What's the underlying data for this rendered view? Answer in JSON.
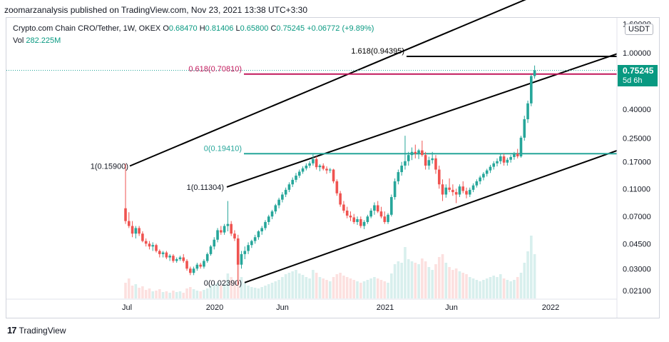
{
  "header": {
    "published": "zoomarzanalysis published on TradingView.com, Nov 23, 2021 13:38 UTC+3:30"
  },
  "legend": {
    "symbol": "Crypto.com Chain CRO/Tether, 1W, OKEX",
    "open_label": "O",
    "open": "0.68470",
    "high_label": "H",
    "high": "0.81406",
    "low_label": "L",
    "low": "0.65800",
    "close_label": "C",
    "close": "0.75245",
    "change": "+0.06772 (+9.89%)",
    "vol_label": "Vol",
    "vol": "282.225M"
  },
  "currency_badge": "USDT",
  "price_tag": {
    "price": "0.75245",
    "countdown": "5d 6h"
  },
  "footer": {
    "brand": "TradingView"
  },
  "chart_data": {
    "type": "candlestick",
    "y_scale": "log",
    "y_ticks": [
      "1.60000",
      "1.00000",
      "0.40000",
      "0.25000",
      "0.17000",
      "0.11000",
      "0.07000",
      "0.04500",
      "0.03000",
      "0.02100"
    ],
    "x_ticks": [
      "Jul",
      "2020",
      "Jun",
      "2021",
      "Jun",
      "2022"
    ],
    "fib_levels": [
      {
        "label": "1.618(0.94395)",
        "value": 0.94395,
        "color": "#000000"
      },
      {
        "label": "0.618(0.70810)",
        "value": 0.7081,
        "color": "#c2185b"
      },
      {
        "label": "0(0.19410)",
        "value": 0.1941,
        "color": "#26a69a"
      }
    ],
    "annotations": [
      {
        "label": "1(0.15900)",
        "value": 0.159
      },
      {
        "label": "1(0.11304)",
        "value": 0.11304
      },
      {
        "label": "0(0.02390)",
        "value": 0.0239
      }
    ],
    "colors": {
      "up": "#26a69a",
      "down": "#ef5350",
      "channel": "#000000"
    },
    "candles": [
      [
        0.08,
        0.165,
        0.062,
        0.065
      ],
      [
        0.065,
        0.075,
        0.058,
        0.06
      ],
      [
        0.06,
        0.065,
        0.05,
        0.053
      ],
      [
        0.053,
        0.06,
        0.049,
        0.058
      ],
      [
        0.058,
        0.06,
        0.051,
        0.053
      ],
      [
        0.053,
        0.055,
        0.046,
        0.047
      ],
      [
        0.047,
        0.049,
        0.043,
        0.045
      ],
      [
        0.045,
        0.047,
        0.041,
        0.043
      ],
      [
        0.043,
        0.046,
        0.04,
        0.044
      ],
      [
        0.044,
        0.045,
        0.039,
        0.04
      ],
      [
        0.04,
        0.041,
        0.036,
        0.038
      ],
      [
        0.038,
        0.04,
        0.036,
        0.039
      ],
      [
        0.039,
        0.04,
        0.035,
        0.036
      ],
      [
        0.036,
        0.038,
        0.034,
        0.037
      ],
      [
        0.037,
        0.038,
        0.033,
        0.034
      ],
      [
        0.034,
        0.036,
        0.033,
        0.035
      ],
      [
        0.035,
        0.037,
        0.034,
        0.036
      ],
      [
        0.036,
        0.038,
        0.033,
        0.034
      ],
      [
        0.034,
        0.035,
        0.029,
        0.03
      ],
      [
        0.03,
        0.031,
        0.027,
        0.028
      ],
      [
        0.028,
        0.031,
        0.027,
        0.03
      ],
      [
        0.03,
        0.033,
        0.029,
        0.032
      ],
      [
        0.032,
        0.033,
        0.03,
        0.031
      ],
      [
        0.031,
        0.035,
        0.03,
        0.034
      ],
      [
        0.034,
        0.039,
        0.033,
        0.038
      ],
      [
        0.038,
        0.044,
        0.037,
        0.043
      ],
      [
        0.043,
        0.05,
        0.041,
        0.048
      ],
      [
        0.048,
        0.058,
        0.046,
        0.056
      ],
      [
        0.056,
        0.06,
        0.052,
        0.054
      ],
      [
        0.054,
        0.062,
        0.052,
        0.06
      ],
      [
        0.06,
        0.09,
        0.055,
        0.062
      ],
      [
        0.062,
        0.065,
        0.051,
        0.053
      ],
      [
        0.053,
        0.056,
        0.047,
        0.049
      ],
      [
        0.049,
        0.052,
        0.023,
        0.032
      ],
      [
        0.032,
        0.04,
        0.03,
        0.038
      ],
      [
        0.038,
        0.043,
        0.035,
        0.04
      ],
      [
        0.04,
        0.046,
        0.038,
        0.044
      ],
      [
        0.044,
        0.048,
        0.042,
        0.047
      ],
      [
        0.047,
        0.052,
        0.045,
        0.05
      ],
      [
        0.05,
        0.056,
        0.048,
        0.055
      ],
      [
        0.055,
        0.06,
        0.052,
        0.058
      ],
      [
        0.058,
        0.066,
        0.056,
        0.064
      ],
      [
        0.064,
        0.072,
        0.061,
        0.07
      ],
      [
        0.07,
        0.078,
        0.067,
        0.076
      ],
      [
        0.076,
        0.086,
        0.073,
        0.084
      ],
      [
        0.084,
        0.095,
        0.08,
        0.092
      ],
      [
        0.092,
        0.104,
        0.088,
        0.1
      ],
      [
        0.1,
        0.112,
        0.096,
        0.108
      ],
      [
        0.108,
        0.122,
        0.104,
        0.118
      ],
      [
        0.118,
        0.132,
        0.113,
        0.127
      ],
      [
        0.127,
        0.142,
        0.122,
        0.136
      ],
      [
        0.136,
        0.15,
        0.131,
        0.145
      ],
      [
        0.145,
        0.158,
        0.14,
        0.153
      ],
      [
        0.153,
        0.166,
        0.148,
        0.16
      ],
      [
        0.16,
        0.172,
        0.154,
        0.166
      ],
      [
        0.166,
        0.192,
        0.16,
        0.178
      ],
      [
        0.178,
        0.186,
        0.15,
        0.156
      ],
      [
        0.156,
        0.164,
        0.146,
        0.16
      ],
      [
        0.16,
        0.166,
        0.148,
        0.152
      ],
      [
        0.152,
        0.158,
        0.14,
        0.148
      ],
      [
        0.148,
        0.154,
        0.142,
        0.15
      ],
      [
        0.15,
        0.152,
        0.12,
        0.124
      ],
      [
        0.124,
        0.128,
        0.098,
        0.102
      ],
      [
        0.102,
        0.106,
        0.082,
        0.085
      ],
      [
        0.085,
        0.09,
        0.074,
        0.077
      ],
      [
        0.077,
        0.082,
        0.068,
        0.071
      ],
      [
        0.071,
        0.076,
        0.065,
        0.069
      ],
      [
        0.069,
        0.073,
        0.062,
        0.064
      ],
      [
        0.064,
        0.07,
        0.061,
        0.067
      ],
      [
        0.067,
        0.07,
        0.058,
        0.06
      ],
      [
        0.06,
        0.066,
        0.057,
        0.064
      ],
      [
        0.064,
        0.072,
        0.062,
        0.07
      ],
      [
        0.07,
        0.08,
        0.068,
        0.077
      ],
      [
        0.077,
        0.088,
        0.072,
        0.084
      ],
      [
        0.084,
        0.09,
        0.074,
        0.076
      ],
      [
        0.076,
        0.082,
        0.068,
        0.07
      ],
      [
        0.07,
        0.076,
        0.062,
        0.064
      ],
      [
        0.064,
        0.074,
        0.062,
        0.072
      ],
      [
        0.072,
        0.1,
        0.07,
        0.096
      ],
      [
        0.096,
        0.13,
        0.092,
        0.124
      ],
      [
        0.124,
        0.15,
        0.118,
        0.144
      ],
      [
        0.144,
        0.17,
        0.136,
        0.16
      ],
      [
        0.16,
        0.26,
        0.15,
        0.172
      ],
      [
        0.172,
        0.2,
        0.16,
        0.19
      ],
      [
        0.19,
        0.215,
        0.175,
        0.2
      ],
      [
        0.2,
        0.225,
        0.18,
        0.195
      ],
      [
        0.195,
        0.21,
        0.178,
        0.205
      ],
      [
        0.205,
        0.24,
        0.185,
        0.19
      ],
      [
        0.19,
        0.2,
        0.15,
        0.16
      ],
      [
        0.16,
        0.185,
        0.15,
        0.175
      ],
      [
        0.175,
        0.2,
        0.165,
        0.18
      ],
      [
        0.18,
        0.19,
        0.14,
        0.15
      ],
      [
        0.15,
        0.16,
        0.11,
        0.118
      ],
      [
        0.118,
        0.128,
        0.09,
        0.1
      ],
      [
        0.1,
        0.118,
        0.095,
        0.112
      ],
      [
        0.112,
        0.13,
        0.104,
        0.108
      ],
      [
        0.108,
        0.118,
        0.098,
        0.104
      ],
      [
        0.104,
        0.11,
        0.087,
        0.1
      ],
      [
        0.1,
        0.118,
        0.096,
        0.114
      ],
      [
        0.114,
        0.124,
        0.102,
        0.106
      ],
      [
        0.106,
        0.112,
        0.094,
        0.1
      ],
      [
        0.1,
        0.112,
        0.096,
        0.108
      ],
      [
        0.108,
        0.12,
        0.104,
        0.116
      ],
      [
        0.116,
        0.128,
        0.112,
        0.124
      ],
      [
        0.124,
        0.136,
        0.118,
        0.132
      ],
      [
        0.132,
        0.144,
        0.126,
        0.14
      ],
      [
        0.14,
        0.152,
        0.134,
        0.148
      ],
      [
        0.148,
        0.162,
        0.142,
        0.157
      ],
      [
        0.157,
        0.172,
        0.15,
        0.166
      ],
      [
        0.166,
        0.18,
        0.158,
        0.172
      ],
      [
        0.172,
        0.196,
        0.164,
        0.186
      ],
      [
        0.186,
        0.194,
        0.16,
        0.168
      ],
      [
        0.168,
        0.182,
        0.16,
        0.176
      ],
      [
        0.176,
        0.19,
        0.168,
        0.184
      ],
      [
        0.184,
        0.2,
        0.176,
        0.194
      ],
      [
        0.194,
        0.21,
        0.18,
        0.186
      ],
      [
        0.186,
        0.26,
        0.182,
        0.252
      ],
      [
        0.252,
        0.36,
        0.24,
        0.34
      ],
      [
        0.34,
        0.46,
        0.32,
        0.44
      ],
      [
        0.44,
        0.7,
        0.42,
        0.685
      ],
      [
        0.685,
        0.814,
        0.658,
        0.752
      ]
    ],
    "volumes": [
      0.22,
      0.28,
      0.18,
      0.2,
      0.15,
      0.17,
      0.12,
      0.14,
      0.1,
      0.11,
      0.13,
      0.09,
      0.1,
      0.08,
      0.11,
      0.09,
      0.1,
      0.08,
      0.14,
      0.16,
      0.13,
      0.11,
      0.1,
      0.12,
      0.14,
      0.18,
      0.2,
      0.22,
      0.18,
      0.2,
      0.35,
      0.3,
      0.25,
      0.55,
      0.3,
      0.22,
      0.18,
      0.16,
      0.15,
      0.14,
      0.16,
      0.18,
      0.2,
      0.22,
      0.24,
      0.26,
      0.3,
      0.34,
      0.36,
      0.38,
      0.4,
      0.35,
      0.33,
      0.3,
      0.28,
      0.4,
      0.36,
      0.3,
      0.28,
      0.26,
      0.24,
      0.3,
      0.34,
      0.36,
      0.32,
      0.3,
      0.28,
      0.26,
      0.24,
      0.22,
      0.24,
      0.26,
      0.28,
      0.3,
      0.28,
      0.26,
      0.24,
      0.22,
      0.35,
      0.48,
      0.52,
      0.5,
      0.72,
      0.55,
      0.52,
      0.5,
      0.48,
      0.56,
      0.52,
      0.44,
      0.4,
      0.48,
      0.58,
      0.62,
      0.5,
      0.44,
      0.4,
      0.42,
      0.38,
      0.36,
      0.34,
      0.3,
      0.28,
      0.26,
      0.24,
      0.26,
      0.28,
      0.3,
      0.32,
      0.3,
      0.34,
      0.28,
      0.26,
      0.24,
      0.26,
      0.3,
      0.36,
      0.5,
      0.66,
      0.88,
      0.62
    ]
  }
}
